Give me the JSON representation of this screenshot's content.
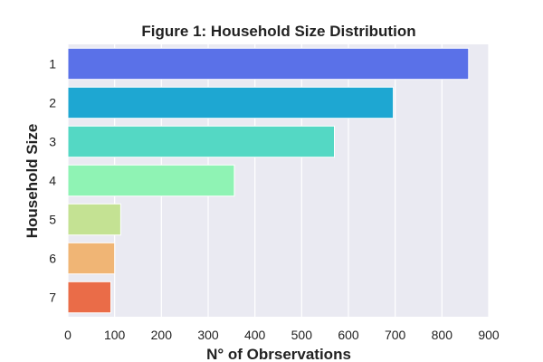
{
  "chart_data": {
    "type": "bar",
    "orientation": "horizontal",
    "title": "Figure 1: Household Size Distribution",
    "xlabel": "N° of Obrservations",
    "ylabel": "Household Size",
    "categories": [
      "1",
      "2",
      "3",
      "4",
      "5",
      "6",
      "7"
    ],
    "values": [
      857,
      696,
      570,
      356,
      113,
      100,
      92
    ],
    "xlim": [
      0,
      900
    ],
    "xticks": [
      "0",
      "100",
      "200",
      "300",
      "400",
      "500",
      "600",
      "700",
      "800",
      "900"
    ],
    "grid": true,
    "background": "#eaeaf2",
    "bar_colors": [
      "#5a71e8",
      "#1ea7d2",
      "#54d8c4",
      "#8ff3b4",
      "#c4e293",
      "#f0b575",
      "#ea6c48"
    ]
  }
}
